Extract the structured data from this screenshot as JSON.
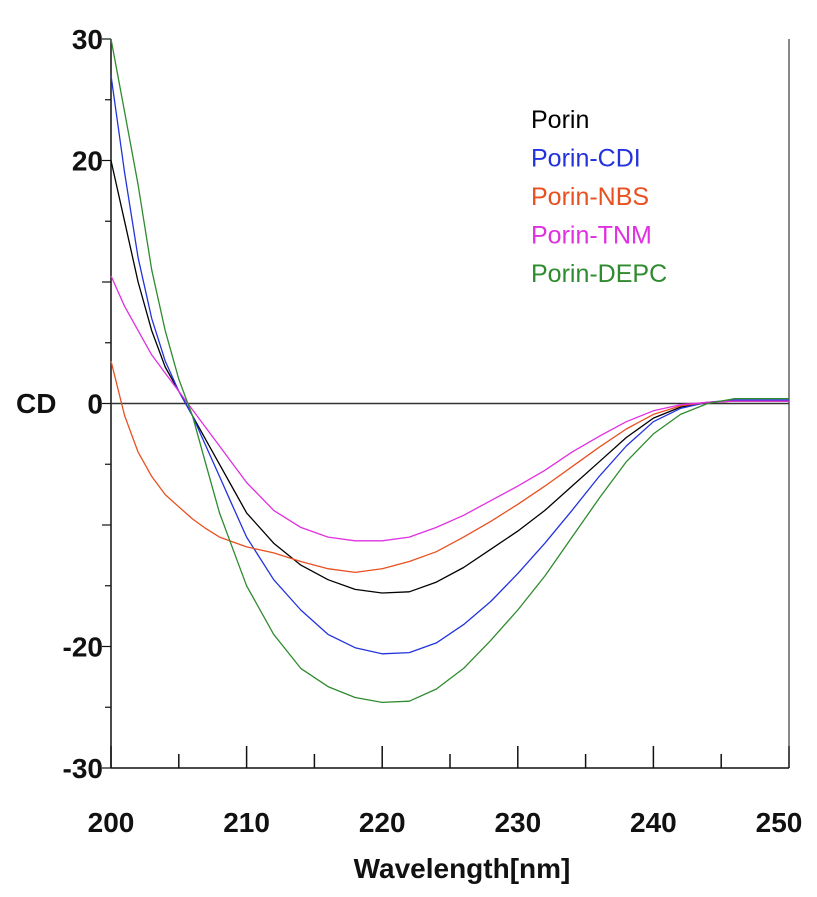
{
  "chart_data": {
    "type": "line",
    "title": "",
    "xlabel": "Wavelength[nm]",
    "ylabel": "CD",
    "xlim": [
      200,
      250
    ],
    "ylim": [
      -30,
      30
    ],
    "x_ticks": [
      "200",
      "210",
      "220",
      "230",
      "240",
      "250"
    ],
    "y_ticks": [
      "30",
      "20",
      "0",
      "-20",
      "-30"
    ],
    "grid": false,
    "legend_position": "top-right",
    "series": [
      {
        "name": "Porin",
        "color": "#000000",
        "points": [
          [
            200,
            20
          ],
          [
            201,
            15
          ],
          [
            202,
            10
          ],
          [
            203,
            6
          ],
          [
            204,
            3
          ],
          [
            205,
            1
          ],
          [
            206,
            -1
          ],
          [
            207,
            -3
          ],
          [
            208,
            -5
          ],
          [
            209,
            -7
          ],
          [
            210,
            -9
          ],
          [
            212,
            -11.5
          ],
          [
            214,
            -13.3
          ],
          [
            216,
            -14.5
          ],
          [
            218,
            -15.3
          ],
          [
            220,
            -15.6
          ],
          [
            222,
            -15.5
          ],
          [
            224,
            -14.7
          ],
          [
            226,
            -13.5
          ],
          [
            228,
            -12
          ],
          [
            230,
            -10.5
          ],
          [
            232,
            -8.8
          ],
          [
            234,
            -6.8
          ],
          [
            236,
            -4.8
          ],
          [
            238,
            -2.8
          ],
          [
            240,
            -1.2
          ],
          [
            242,
            -0.3
          ],
          [
            244,
            0.1
          ],
          [
            246,
            0.2
          ],
          [
            248,
            0.2
          ],
          [
            250,
            0.2
          ]
        ]
      },
      {
        "name": "Porin-CDI",
        "color": "#2233dd",
        "points": [
          [
            200,
            27
          ],
          [
            201,
            19
          ],
          [
            202,
            12
          ],
          [
            203,
            7
          ],
          [
            204,
            3.5
          ],
          [
            205,
            1
          ],
          [
            206,
            -1
          ],
          [
            207,
            -3.5
          ],
          [
            208,
            -6
          ],
          [
            209,
            -8.5
          ],
          [
            210,
            -11
          ],
          [
            212,
            -14.5
          ],
          [
            214,
            -17
          ],
          [
            216,
            -19
          ],
          [
            218,
            -20.1
          ],
          [
            220,
            -20.6
          ],
          [
            222,
            -20.5
          ],
          [
            224,
            -19.7
          ],
          [
            226,
            -18.2
          ],
          [
            228,
            -16.3
          ],
          [
            230,
            -14
          ],
          [
            232,
            -11.5
          ],
          [
            234,
            -8.8
          ],
          [
            236,
            -6
          ],
          [
            238,
            -3.5
          ],
          [
            240,
            -1.5
          ],
          [
            242,
            -0.4
          ],
          [
            244,
            0.1
          ],
          [
            246,
            0.3
          ],
          [
            248,
            0.3
          ],
          [
            250,
            0.3
          ]
        ]
      },
      {
        "name": "Porin-NBS",
        "color": "#e85020",
        "points": [
          [
            200,
            3.5
          ],
          [
            201,
            -1
          ],
          [
            202,
            -4
          ],
          [
            203,
            -6
          ],
          [
            204,
            -7.5
          ],
          [
            205,
            -8.5
          ],
          [
            206,
            -9.5
          ],
          [
            207,
            -10.3
          ],
          [
            208,
            -11
          ],
          [
            209,
            -11.4
          ],
          [
            210,
            -11.8
          ],
          [
            212,
            -12.3
          ],
          [
            214,
            -13
          ],
          [
            216,
            -13.6
          ],
          [
            218,
            -13.9
          ],
          [
            220,
            -13.6
          ],
          [
            222,
            -13
          ],
          [
            224,
            -12.2
          ],
          [
            226,
            -11
          ],
          [
            228,
            -9.7
          ],
          [
            230,
            -8.3
          ],
          [
            232,
            -6.8
          ],
          [
            234,
            -5.2
          ],
          [
            236,
            -3.6
          ],
          [
            238,
            -2.1
          ],
          [
            240,
            -0.9
          ],
          [
            242,
            -0.2
          ],
          [
            244,
            0.1
          ],
          [
            246,
            0.2
          ],
          [
            248,
            0.2
          ],
          [
            250,
            0.2
          ]
        ]
      },
      {
        "name": "Porin-TNM",
        "color": "#e030e0",
        "points": [
          [
            200,
            10.5
          ],
          [
            201,
            8
          ],
          [
            202,
            6
          ],
          [
            203,
            4
          ],
          [
            204,
            2.5
          ],
          [
            205,
            1
          ],
          [
            206,
            -0.5
          ],
          [
            207,
            -2
          ],
          [
            208,
            -3.5
          ],
          [
            209,
            -5
          ],
          [
            210,
            -6.5
          ],
          [
            212,
            -8.8
          ],
          [
            214,
            -10.2
          ],
          [
            216,
            -11
          ],
          [
            218,
            -11.3
          ],
          [
            220,
            -11.3
          ],
          [
            222,
            -11
          ],
          [
            224,
            -10.2
          ],
          [
            226,
            -9.2
          ],
          [
            228,
            -8
          ],
          [
            230,
            -6.8
          ],
          [
            232,
            -5.5
          ],
          [
            234,
            -4
          ],
          [
            236,
            -2.7
          ],
          [
            238,
            -1.5
          ],
          [
            240,
            -0.6
          ],
          [
            242,
            -0.1
          ],
          [
            244,
            0.1
          ],
          [
            246,
            0.2
          ],
          [
            248,
            0.2
          ],
          [
            250,
            0.2
          ]
        ]
      },
      {
        "name": "Porin-DEPC",
        "color": "#2e8b2e",
        "points": [
          [
            200,
            30
          ],
          [
            201,
            24
          ],
          [
            202,
            18
          ],
          [
            203,
            11
          ],
          [
            204,
            6
          ],
          [
            205,
            2
          ],
          [
            206,
            -1
          ],
          [
            207,
            -5
          ],
          [
            208,
            -9
          ],
          [
            209,
            -12
          ],
          [
            210,
            -15
          ],
          [
            212,
            -19
          ],
          [
            214,
            -21.8
          ],
          [
            216,
            -23.3
          ],
          [
            218,
            -24.2
          ],
          [
            220,
            -24.6
          ],
          [
            222,
            -24.5
          ],
          [
            224,
            -23.5
          ],
          [
            226,
            -21.8
          ],
          [
            228,
            -19.5
          ],
          [
            230,
            -17
          ],
          [
            232,
            -14.2
          ],
          [
            234,
            -11
          ],
          [
            236,
            -7.8
          ],
          [
            238,
            -4.8
          ],
          [
            240,
            -2.5
          ],
          [
            242,
            -0.9
          ],
          [
            244,
            0
          ],
          [
            246,
            0.4
          ],
          [
            248,
            0.4
          ],
          [
            250,
            0.4
          ]
        ]
      }
    ]
  }
}
